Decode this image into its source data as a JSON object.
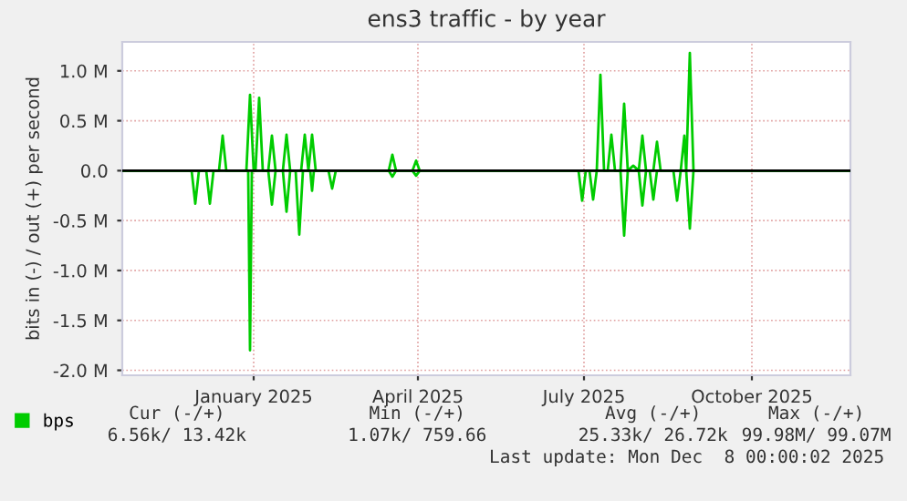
{
  "chart_data": {
    "type": "line",
    "title": "ens3 traffic - by year",
    "ylabel": "bits in (-) / out (+) per second",
    "xlim": [
      "2024-10-21",
      "2025-11-24"
    ],
    "ylim": [
      -2.05,
      1.29
    ],
    "xticks": [
      {
        "value": "2025-01-01",
        "label": "January 2025"
      },
      {
        "value": "2025-04-01",
        "label": "April 2025"
      },
      {
        "value": "2025-07-01",
        "label": "July 2025"
      },
      {
        "value": "2025-10-01",
        "label": "October 2025"
      }
    ],
    "yticks": [
      {
        "value": 1.0,
        "label": "1.0 M"
      },
      {
        "value": 0.5,
        "label": "0.5 M"
      },
      {
        "value": 0.0,
        "label": "0.0"
      },
      {
        "value": -0.5,
        "label": "-0.5 M"
      },
      {
        "value": -1.0,
        "label": "-1.0 M"
      },
      {
        "value": -1.5,
        "label": "-1.5 M"
      },
      {
        "value": -2.0,
        "label": "-2.0 M"
      }
    ],
    "grid": true,
    "legend": "bottom",
    "ref_lines": [
      {
        "axis": "y",
        "value": 0,
        "color": "#000000"
      }
    ],
    "series": [
      {
        "name": "bps",
        "color": "#00cc00",
        "x": [
          "2024-10-21",
          "2024-12-13",
          "2024-12-15",
          "2024-12-17",
          "2024-12-28",
          "2024-12-30",
          "2025-01-01",
          "2025-01-02",
          "2025-01-04",
          "2025-01-06",
          "2025-01-09",
          "2025-01-11",
          "2025-01-13",
          "2025-01-17",
          "2025-01-19",
          "2025-01-21",
          "2025-01-27",
          "2025-01-29",
          "2025-01-31",
          "2025-02-02",
          "2025-02-04",
          "2025-03-16",
          "2025-03-18",
          "2025-03-20",
          "2025-03-29",
          "2025-03-31",
          "2025-04-02",
          "2025-07-08",
          "2025-07-10",
          "2025-07-12",
          "2025-07-14",
          "2025-07-16",
          "2025-07-18",
          "2025-07-21",
          "2025-07-23",
          "2025-07-25",
          "2025-07-28",
          "2025-07-31",
          "2025-08-02",
          "2025-08-04",
          "2025-08-08",
          "2025-08-10",
          "2025-08-12",
          "2025-08-23",
          "2025-08-25",
          "2025-08-26",
          "2025-08-28",
          "2025-08-30",
          "2025-11-24"
        ],
        "values": [
          0,
          0,
          0.35,
          0,
          0,
          0.76,
          0,
          0,
          0.73,
          0,
          0,
          0.35,
          0,
          0,
          0.36,
          0,
          0,
          0.36,
          0,
          0.36,
          0,
          0,
          0.16,
          0,
          0,
          0.1,
          0,
          0,
          0.96,
          0,
          0,
          0.36,
          0,
          0,
          0.67,
          0,
          0.05,
          0,
          0.35,
          0,
          0,
          0.29,
          0,
          0,
          0.35,
          0,
          1.18,
          0,
          0
        ]
      },
      {
        "color": "#00cc00",
        "x": [
          "2024-10-21",
          "2024-11-28",
          "2024-11-30",
          "2024-12-02",
          "2024-12-06",
          "2024-12-08",
          "2024-12-10",
          "2024-12-29",
          "2024-12-30",
          "2024-12-31",
          "2025-01-09",
          "2025-01-11",
          "2025-01-13",
          "2025-01-17",
          "2025-01-19",
          "2025-01-21",
          "2025-01-24",
          "2025-01-26",
          "2025-01-28",
          "2025-02-01",
          "2025-02-02",
          "2025-02-03",
          "2025-02-11",
          "2025-02-13",
          "2025-02-15",
          "2025-03-16",
          "2025-03-18",
          "2025-03-20",
          "2025-03-29",
          "2025-03-31",
          "2025-04-02",
          "2025-06-28",
          "2025-06-30",
          "2025-07-02",
          "2025-07-04",
          "2025-07-06",
          "2025-07-08",
          "2025-07-21",
          "2025-07-23",
          "2025-07-25",
          "2025-07-31",
          "2025-08-02",
          "2025-08-04",
          "2025-08-06",
          "2025-08-08",
          "2025-08-10",
          "2025-08-19",
          "2025-08-21",
          "2025-08-23",
          "2025-08-26",
          "2025-08-28",
          "2025-08-30",
          "2025-11-24"
        ],
        "values": [
          0,
          0,
          -0.33,
          0,
          0,
          -0.33,
          0,
          0,
          -1.8,
          0,
          0,
          -0.34,
          0,
          0,
          -0.41,
          0,
          0,
          -0.64,
          0,
          0,
          -0.2,
          0,
          0,
          -0.18,
          0,
          0,
          -0.06,
          0,
          0,
          -0.05,
          0,
          0,
          -0.3,
          0,
          0,
          -0.29,
          0,
          0,
          -0.65,
          0,
          0,
          -0.35,
          0,
          0,
          -0.29,
          0,
          0,
          -0.3,
          0,
          0,
          -0.58,
          0,
          0
        ]
      }
    ],
    "annotations": [
      "Cur (-/+)",
      "Min (-/+)",
      "Avg (-/+)",
      "Max (-/+)",
      "6.56k/ 13.42k",
      "1.07k/ 759.66",
      "25.33k/ 26.72k",
      "99.98M/ 99.07M",
      "Last update: Mon Dec  8 00:00:02 2025"
    ]
  }
}
